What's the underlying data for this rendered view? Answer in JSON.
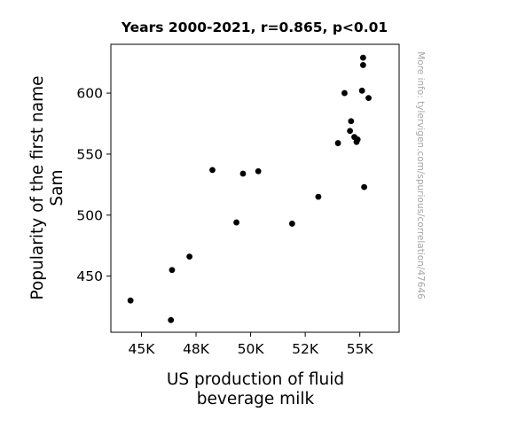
{
  "chart_data": {
    "type": "scatter",
    "title": "Years 2000-2021, r=0.865, p<0.01",
    "xlabel_lines": [
      "US production of fluid",
      "beverage milk"
    ],
    "ylabel_lines": [
      "Popularity of the first name",
      "Sam"
    ],
    "watermark": "More info: tylervigen.com/spurious/correlation/47646",
    "xlim": [
      43600,
      56800
    ],
    "ylim": [
      404,
      640
    ],
    "x_ticks": [
      {
        "value": 45000,
        "label": "45K"
      },
      {
        "value": 47500,
        "label": "48K"
      },
      {
        "value": 50000,
        "label": "50K"
      },
      {
        "value": 52500,
        "label": "52K"
      },
      {
        "value": 55000,
        "label": "55K"
      }
    ],
    "y_ticks": [
      {
        "value": 450,
        "label": "450"
      },
      {
        "value": 500,
        "label": "500"
      },
      {
        "value": 550,
        "label": "550"
      },
      {
        "value": 600,
        "label": "600"
      }
    ],
    "grid": false,
    "marker_color": "#000000",
    "points": [
      {
        "x": 44500,
        "y": 430
      },
      {
        "x": 46350,
        "y": 414
      },
      {
        "x": 46400,
        "y": 455
      },
      {
        "x": 47200,
        "y": 466
      },
      {
        "x": 48250,
        "y": 537
      },
      {
        "x": 49350,
        "y": 494
      },
      {
        "x": 49650,
        "y": 534
      },
      {
        "x": 50350,
        "y": 536
      },
      {
        "x": 51900,
        "y": 493
      },
      {
        "x": 53100,
        "y": 515
      },
      {
        "x": 54000,
        "y": 559
      },
      {
        "x": 54300,
        "y": 600
      },
      {
        "x": 54550,
        "y": 569
      },
      {
        "x": 54600,
        "y": 577
      },
      {
        "x": 54750,
        "y": 564
      },
      {
        "x": 54850,
        "y": 560
      },
      {
        "x": 54900,
        "y": 562
      },
      {
        "x": 55100,
        "y": 602
      },
      {
        "x": 55150,
        "y": 629
      },
      {
        "x": 55150,
        "y": 623
      },
      {
        "x": 55200,
        "y": 523
      },
      {
        "x": 55400,
        "y": 596
      }
    ]
  }
}
